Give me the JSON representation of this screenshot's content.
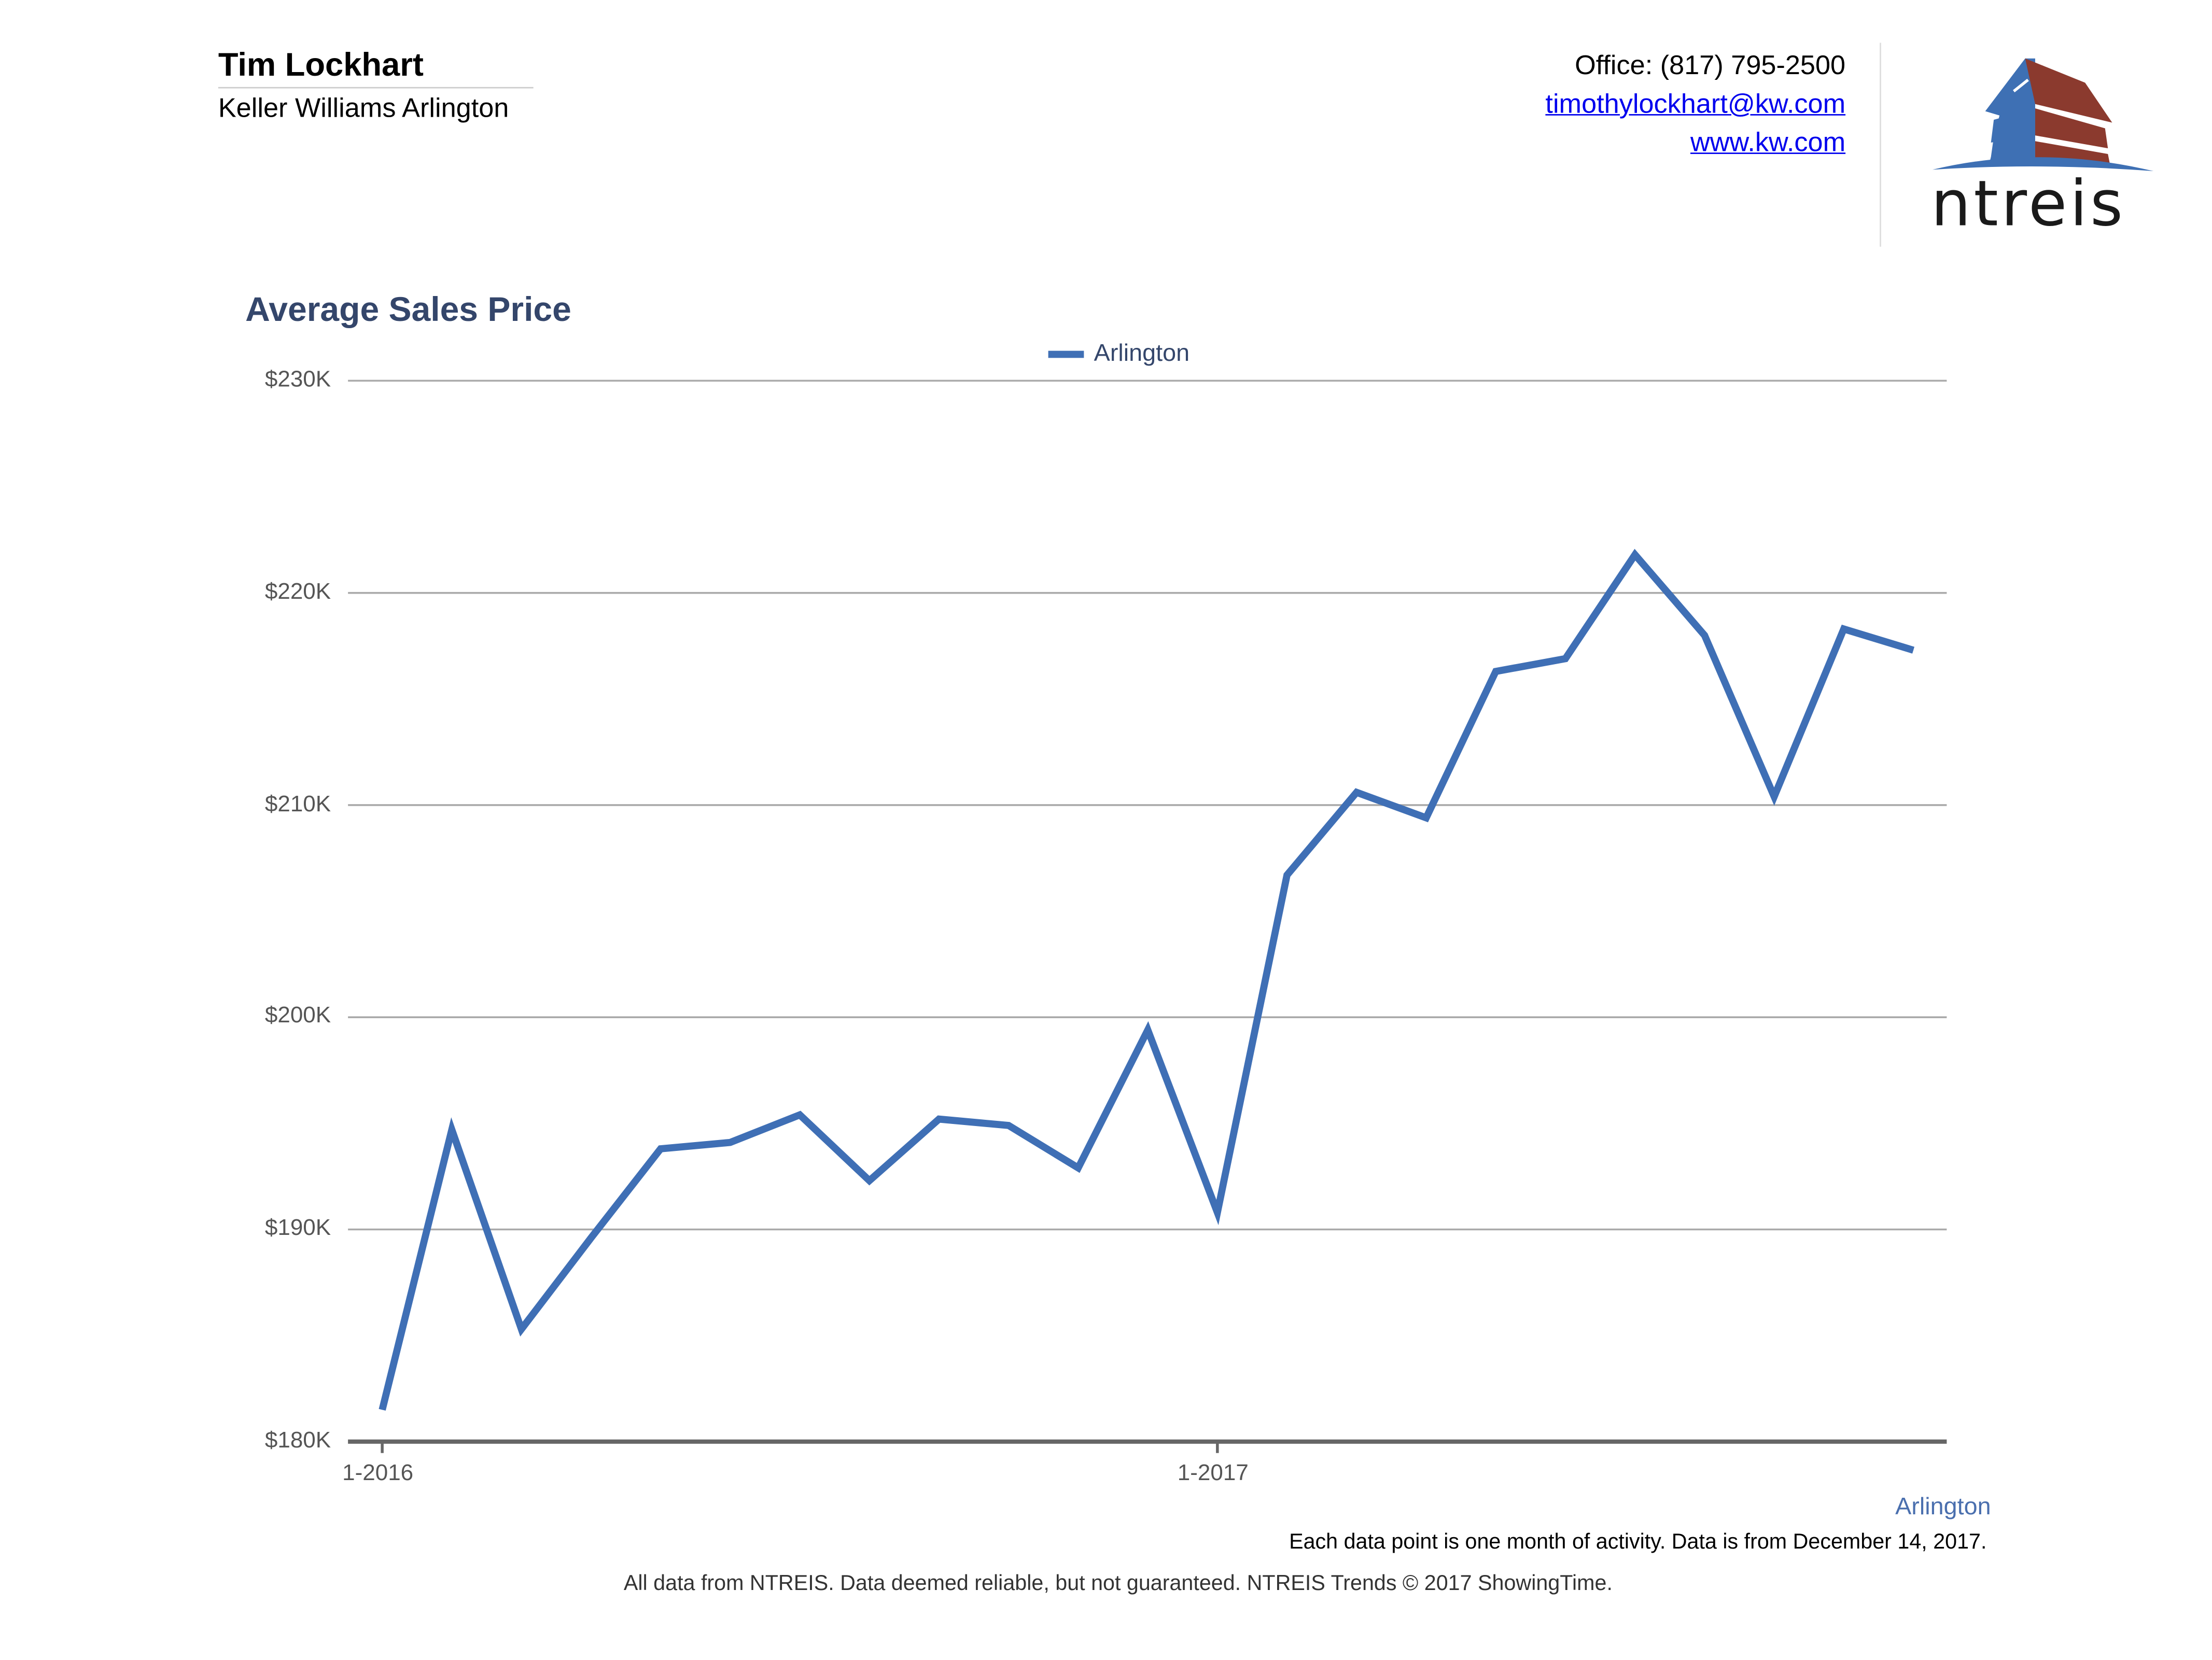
{
  "header": {
    "agent_name": "Tim Lockhart",
    "company": "Keller Williams Arlington",
    "office": "Office: (817) 795-2500",
    "email": "timothylockhart@kw.com",
    "website": "www.kw.com",
    "logo_text": "ntreis"
  },
  "colors": {
    "series": "#3f6fb5",
    "title": "#34466b",
    "logo_blue": "#3e70b4",
    "logo_red": "#8b3a2e"
  },
  "chart_data": {
    "type": "line",
    "title": "Average Sales Price",
    "xlabel": "",
    "ylabel": "",
    "ylim": [
      180000,
      230000
    ],
    "y_ticks": [
      180000,
      190000,
      200000,
      210000,
      220000,
      230000
    ],
    "y_tick_labels": [
      "$180K",
      "$190K",
      "$200K",
      "$210K",
      "$220K",
      "$230K"
    ],
    "x": [
      "1-2016",
      "2-2016",
      "3-2016",
      "4-2016",
      "5-2016",
      "6-2016",
      "7-2016",
      "8-2016",
      "9-2016",
      "10-2016",
      "11-2016",
      "12-2016",
      "1-2017",
      "2-2017",
      "3-2017",
      "4-2017",
      "5-2017",
      "6-2017",
      "7-2017",
      "8-2017",
      "9-2017",
      "10-2017",
      "11-2017"
    ],
    "x_tick_labels": [
      {
        "index": 0,
        "label": "1-2016"
      },
      {
        "index": 12,
        "label": "1-2017"
      }
    ],
    "legend": {
      "placement": "top-center",
      "entries": [
        "Arlington"
      ]
    },
    "grid": true,
    "series": [
      {
        "name": "Arlington",
        "values": [
          181500,
          194700,
          185300,
          189600,
          193800,
          194100,
          195400,
          192300,
          195200,
          194900,
          192900,
          199400,
          190800,
          206700,
          210600,
          209400,
          216300,
          216900,
          221800,
          218000,
          210400,
          218300,
          217300
        ]
      }
    ],
    "series_label": "Arlington",
    "note": "Each data point is one month of activity. Data is from December 14, 2017."
  },
  "footer": "All data from NTREIS. Data deemed reliable, but not guaranteed. NTREIS Trends © 2017 ShowingTime."
}
